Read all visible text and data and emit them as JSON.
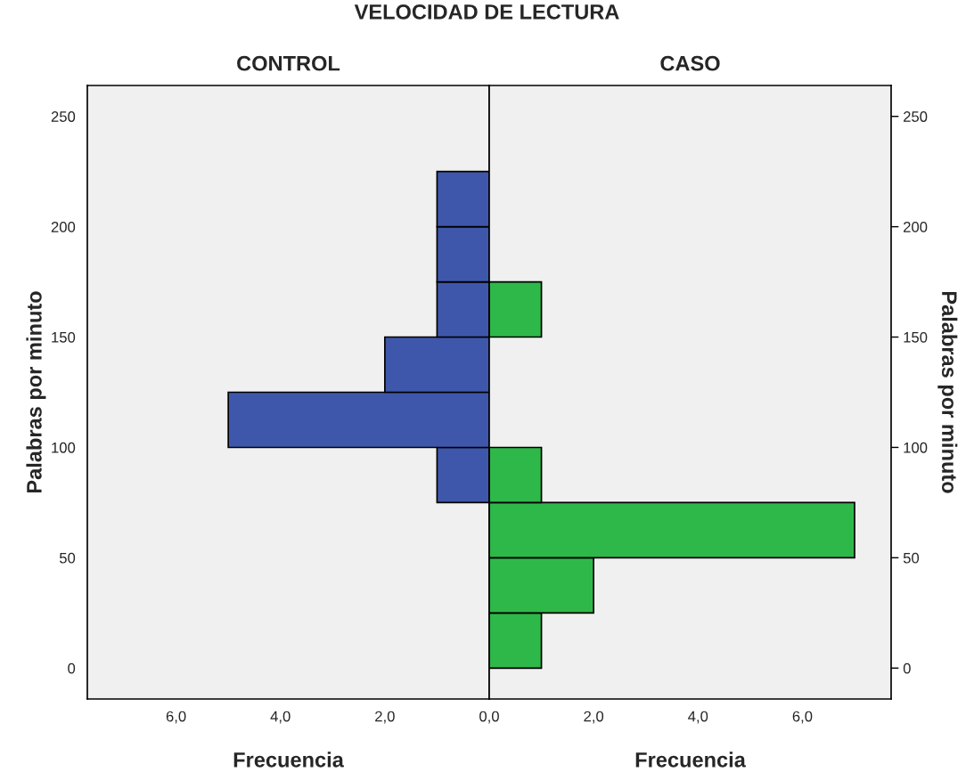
{
  "chart_data": [
    {
      "type": "histogram",
      "orientation": "horizontal",
      "title": "CONTROL",
      "annotations": [
        "VELOCIDAD DE LECTURA"
      ],
      "xlabel": "Frecuencia",
      "ylabel": "Palabras por minuto",
      "color": "#3f57ab",
      "bins": [
        75,
        100,
        125,
        150,
        175,
        200,
        225
      ],
      "values": [
        1,
        5,
        2,
        1,
        1,
        1
      ],
      "xlim": [
        7.7,
        0
      ],
      "xticks": [
        {
          "value": 6,
          "label": "6,0"
        },
        {
          "value": 4,
          "label": "4,0"
        },
        {
          "value": 2,
          "label": "2,0"
        }
      ],
      "ylim": [
        -14,
        264
      ],
      "yticks": [
        0,
        50,
        100,
        150,
        200,
        250
      ],
      "grid": false
    },
    {
      "type": "histogram",
      "orientation": "horizontal",
      "title": "CASO",
      "xlabel": "Frecuencia",
      "ylabel": "Palabras por minuto",
      "color": "#2fb84a",
      "bins": [
        0,
        25,
        50,
        75,
        100,
        125,
        150,
        175
      ],
      "values": [
        1,
        2,
        7,
        1,
        0,
        0,
        1
      ],
      "xlim": [
        0,
        7.7
      ],
      "xticks": [
        {
          "value": 0,
          "label": "0,0"
        },
        {
          "value": 2,
          "label": "2,0"
        },
        {
          "value": 4,
          "label": "4,0"
        },
        {
          "value": 6,
          "label": "6,0"
        }
      ],
      "ylim": [
        -14,
        264
      ],
      "yticks": [
        0,
        50,
        100,
        150,
        200,
        250
      ],
      "grid": false
    }
  ]
}
